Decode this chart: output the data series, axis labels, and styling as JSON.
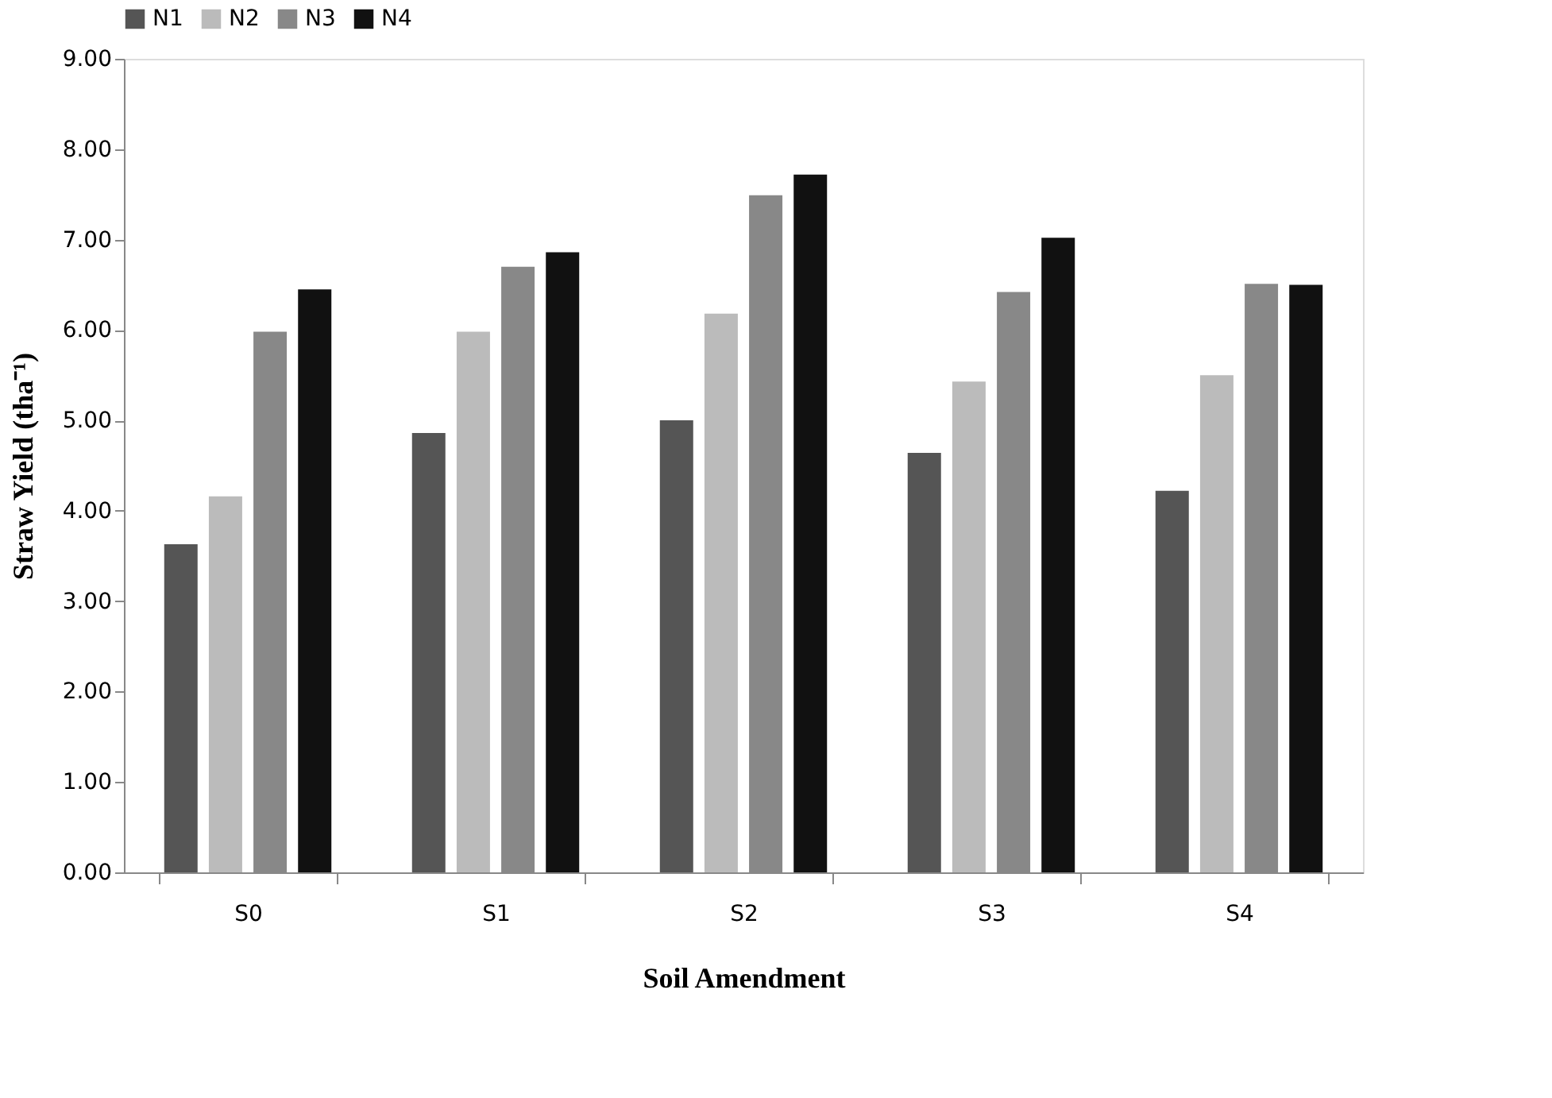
{
  "chart_data": {
    "type": "bar",
    "xlabel": "Soil Amendment",
    "ylabel": "Straw Yield (tha⁻¹)",
    "categories": [
      "S0",
      "S1",
      "S2",
      "S3",
      "S4"
    ],
    "series": [
      {
        "name": "N1",
        "color": "#555555",
        "values": [
          3.63,
          4.86,
          5.0,
          4.64,
          4.22
        ]
      },
      {
        "name": "N2",
        "color": "#bbbbbb",
        "values": [
          4.16,
          5.98,
          6.18,
          5.43,
          5.5
        ]
      },
      {
        "name": "N3",
        "color": "#888888",
        "values": [
          5.98,
          6.7,
          7.49,
          6.42,
          6.51
        ]
      },
      {
        "name": "N4",
        "color": "#111111",
        "values": [
          6.45,
          6.86,
          7.72,
          7.02,
          6.5
        ]
      }
    ],
    "ylim": [
      0,
      9
    ],
    "yticks": [
      {
        "value": 0,
        "label": "0.00"
      },
      {
        "value": 1,
        "label": "1.00"
      },
      {
        "value": 2,
        "label": "2.00"
      },
      {
        "value": 3,
        "label": "3.00"
      },
      {
        "value": 4,
        "label": "4.00"
      },
      {
        "value": 5,
        "label": "5.00"
      },
      {
        "value": 6,
        "label": "6.00"
      },
      {
        "value": 7,
        "label": "7.00"
      },
      {
        "value": 8,
        "label": "8.00"
      },
      {
        "value": 9,
        "label": "9.00"
      }
    ],
    "grid": false,
    "legend": "top"
  }
}
